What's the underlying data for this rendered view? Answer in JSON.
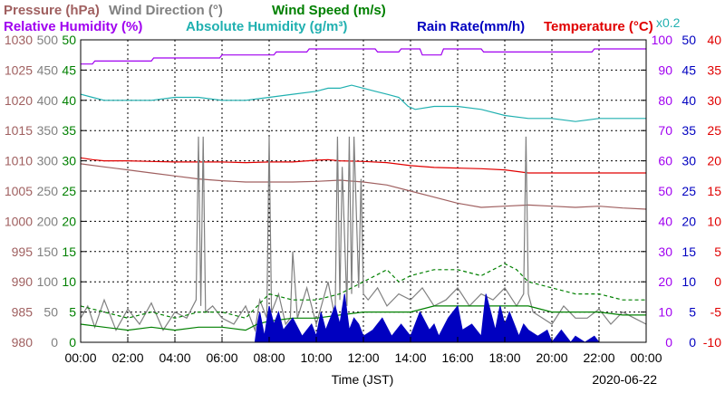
{
  "chart_data": {
    "type": "line",
    "date": "2020-06-22",
    "xlabel": "Time (JST)",
    "x_ticks": [
      "00:00",
      "02:00",
      "04:00",
      "06:00",
      "08:00",
      "10:00",
      "12:00",
      "14:00",
      "16:00",
      "18:00",
      "20:00",
      "22:00",
      "00:00"
    ],
    "legend": [
      {
        "text": "Pressure (hPa)",
        "color": "#a06060"
      },
      {
        "text": "Wind Direction (°)",
        "color": "#808080"
      },
      {
        "text": "Wind Speed (m/s)",
        "color": "#008000"
      },
      {
        "text": "Relative Humidity (%)",
        "color": "#a000f0"
      },
      {
        "text": "Absolute Humidity (g/m³)",
        "color": "#20b0b0"
      },
      {
        "text": "Rain Rate(mm/h)",
        "color": "#0000c0"
      },
      {
        "text": "Temperature (°C)",
        "color": "#e00000"
      }
    ],
    "rain_scale_label": "x0.2",
    "axes": {
      "pressure": {
        "color": "#a06060",
        "range": [
          980,
          1030
        ],
        "ticks": [
          "1030",
          "1025",
          "1020",
          "1015",
          "1010",
          "1005",
          "1000",
          "995",
          "990",
          "985",
          "980"
        ]
      },
      "wind_direction": {
        "color": "#808080",
        "range": [
          0,
          500
        ],
        "ticks": [
          "500",
          "450",
          "400",
          "350",
          "300",
          "250",
          "200",
          "150",
          "100",
          "50",
          "0"
        ]
      },
      "wind_speed": {
        "color": "#008000",
        "range": [
          0,
          50
        ],
        "ticks": [
          "50",
          "45",
          "40",
          "35",
          "30",
          "25",
          "20",
          "15",
          "10",
          "5",
          "0"
        ]
      },
      "humidity": {
        "color": "#a000f0",
        "range": [
          0,
          100
        ],
        "ticks": [
          "100",
          "90",
          "80",
          "70",
          "60",
          "50",
          "40",
          "30",
          "20",
          "10",
          "0"
        ]
      },
      "rain_rate": {
        "color": "#0000c0",
        "range": [
          0,
          50
        ],
        "ticks": [
          "50",
          "45",
          "40",
          "35",
          "30",
          "25",
          "20",
          "15",
          "10",
          "5",
          "0"
        ]
      },
      "temperature": {
        "color": "#e00000",
        "range": [
          -10,
          40
        ],
        "ticks": [
          "40",
          "35",
          "30",
          "25",
          "20",
          "15",
          "10",
          "5",
          "0",
          "-5",
          "-10"
        ]
      }
    },
    "x_range_hours": [
      0,
      24
    ],
    "series": [
      {
        "name": "Relative Humidity (%)",
        "axis": "humidity",
        "color": "#a000f0",
        "x": [
          0,
          0.5,
          0.6,
          3.0,
          3.1,
          5.9,
          6.0,
          8.2,
          8.3,
          9.6,
          9.7,
          12.5,
          12.6,
          13.5,
          13.6,
          14.4,
          14.5,
          15.3,
          15.4,
          17.0,
          17.1,
          19.0,
          19.1,
          21.7,
          21.8,
          24
        ],
        "y": [
          92,
          92,
          93,
          93,
          94,
          94,
          95,
          95,
          96,
          96,
          97,
          97,
          96,
          96,
          97,
          97,
          95,
          95,
          97,
          97,
          96,
          96,
          96,
          96,
          97,
          97
        ]
      },
      {
        "name": "Absolute Humidity (g/m³)",
        "axis": "humidity",
        "color": "#20b0b0",
        "x": [
          0,
          0.5,
          1,
          2,
          3,
          4,
          5,
          6,
          7,
          8,
          9,
          10,
          10.5,
          11,
          11.5,
          12,
          12.5,
          13,
          13.5,
          13.9,
          14.2,
          15,
          16,
          17,
          18,
          19,
          20,
          21,
          22,
          23,
          24
        ],
        "y": [
          82,
          81,
          80,
          80,
          80,
          81,
          81,
          80,
          80,
          81,
          82,
          83,
          84,
          84,
          85,
          84,
          83,
          82,
          81,
          78,
          77,
          78,
          78,
          77,
          75,
          74,
          74,
          73,
          74,
          74,
          74
        ]
      },
      {
        "name": "Temperature (°C)",
        "axis": "temperature",
        "color": "#e00000",
        "x": [
          0,
          0.5,
          1,
          2,
          3,
          4,
          5,
          6,
          7,
          8,
          9,
          10,
          10.5,
          11,
          12,
          13,
          14,
          15,
          16,
          17,
          18,
          19,
          20,
          21,
          22,
          23,
          24
        ],
        "y": [
          20.5,
          20.2,
          20.0,
          20.0,
          19.9,
          19.8,
          19.8,
          19.8,
          19.7,
          19.8,
          19.8,
          20.1,
          20.2,
          20.0,
          19.9,
          19.7,
          19.2,
          18.9,
          18.8,
          18.7,
          18.5,
          18.0,
          18.0,
          18.0,
          18.0,
          18.0,
          18.0
        ]
      },
      {
        "name": "Pressure (hPa)",
        "axis": "pressure",
        "color": "#a06060",
        "x": [
          0,
          1,
          2,
          3,
          4,
          5,
          6,
          7,
          8,
          9,
          10,
          11,
          12,
          13,
          14,
          15,
          16,
          17,
          18,
          19,
          20,
          21,
          22,
          23,
          24
        ],
        "y": [
          1009.5,
          1009.0,
          1008.5,
          1008.0,
          1007.5,
          1007.0,
          1006.7,
          1006.5,
          1006.5,
          1006.5,
          1006.6,
          1006.8,
          1006.5,
          1006.0,
          1005.0,
          1004.0,
          1003.0,
          1002.3,
          1002.5,
          1002.7,
          1002.5,
          1002.3,
          1002.5,
          1002.2,
          1002.0
        ]
      },
      {
        "name": "Wind Direction (°)",
        "axis": "wind_direction",
        "color": "#808080",
        "x": [
          0,
          0.3,
          0.6,
          1.0,
          1.5,
          2.0,
          2.5,
          3.0,
          3.5,
          4.0,
          4.5,
          4.9,
          5.0,
          5.1,
          5.2,
          5.3,
          5.6,
          6.0,
          6.5,
          7.0,
          7.4,
          7.6,
          7.9,
          8.0,
          8.1,
          8.4,
          8.7,
          8.9,
          9.0,
          9.2,
          9.6,
          10.0,
          10.5,
          10.8,
          10.9,
          11.0,
          11.1,
          11.3,
          11.4,
          11.5,
          11.6,
          11.8,
          11.9,
          12.0,
          12.2,
          12.6,
          13.0,
          13.5,
          14.0,
          14.5,
          15.0,
          15.5,
          16.0,
          16.5,
          17.0,
          17.5,
          18.0,
          18.5,
          18.8,
          18.9,
          19.0,
          19.2,
          19.6,
          20.0,
          20.5,
          21.0,
          21.5,
          22.0,
          22.5,
          23.0,
          23.5,
          24.0
        ],
        "y": [
          40,
          60,
          25,
          70,
          20,
          55,
          30,
          65,
          20,
          50,
          40,
          70,
          340,
          60,
          340,
          50,
          60,
          40,
          30,
          60,
          20,
          70,
          40,
          340,
          50,
          80,
          30,
          40,
          150,
          40,
          90,
          30,
          100,
          40,
          340,
          70,
          290,
          60,
          340,
          80,
          340,
          90,
          270,
          80,
          70,
          90,
          60,
          80,
          70,
          90,
          60,
          70,
          90,
          60,
          80,
          70,
          90,
          60,
          80,
          340,
          80,
          50,
          40,
          30,
          60,
          40,
          40,
          55,
          30,
          50,
          40,
          30
        ]
      },
      {
        "name": "Wind Speed (m/s)",
        "axis": "wind_speed",
        "color": "#008000",
        "x": [
          0,
          1,
          2,
          3,
          4,
          5,
          6,
          7,
          7.5,
          8,
          9,
          10,
          11,
          12,
          13,
          14,
          15,
          16,
          17,
          18,
          19,
          20,
          21,
          22,
          23,
          24
        ],
        "y": [
          3,
          2.5,
          2,
          2.5,
          2,
          2.5,
          2.5,
          2,
          3,
          3.5,
          4,
          4,
          4.5,
          5,
          5,
          5,
          6,
          6,
          6,
          6,
          6,
          5,
          5,
          5,
          4.5,
          4.5
        ]
      },
      {
        "name": "Wind Speed (m/s)",
        "axis": "wind_speed",
        "color": "#008000",
        "dashed": true,
        "x": [
          0,
          1,
          2,
          3,
          4,
          5,
          6,
          7,
          7.5,
          8,
          9,
          10,
          11,
          12,
          12.5,
          13,
          13.5,
          14,
          15,
          16,
          17,
          18,
          18.5,
          19,
          20,
          21,
          22,
          23,
          24
        ],
        "y": [
          6,
          5,
          4,
          5,
          4,
          5,
          5,
          4,
          6,
          8,
          7,
          7,
          8,
          10,
          11,
          12,
          10,
          11,
          12,
          12,
          11,
          13,
          12,
          10,
          9,
          8,
          8,
          7,
          7
        ]
      },
      {
        "name": "Rain Rate(mm/h)",
        "axis": "rain_rate",
        "color": "#0000c0",
        "fill": true,
        "x": [
          0,
          7.4,
          7.5,
          7.6,
          7.8,
          8.0,
          8.2,
          8.4,
          8.6,
          9.0,
          9.4,
          9.8,
          10.0,
          10.2,
          10.4,
          10.6,
          10.8,
          11.0,
          11.2,
          11.4,
          11.6,
          11.8,
          12.0,
          12.4,
          12.8,
          13.2,
          13.6,
          14.0,
          14.4,
          14.8,
          15.0,
          15.2,
          15.6,
          16.0,
          16.2,
          16.6,
          17.0,
          17.2,
          17.6,
          17.8,
          18.0,
          18.2,
          18.6,
          18.8,
          19.0,
          19.4,
          19.8,
          20.0,
          20.4,
          20.8,
          21.0,
          21.4,
          21.8,
          22.0,
          24
        ],
        "y": [
          0,
          0,
          3,
          5,
          1,
          6,
          3,
          5,
          2,
          4,
          1,
          3,
          1,
          5,
          2,
          4,
          6,
          3,
          8,
          2,
          4,
          3,
          1,
          2,
          4,
          1,
          3,
          1,
          5,
          2,
          3,
          1,
          4,
          6,
          2,
          3,
          1,
          8,
          2,
          6,
          3,
          5,
          1,
          3,
          2,
          1,
          2,
          0,
          2,
          0,
          1,
          0,
          1,
          0,
          0
        ]
      }
    ]
  }
}
